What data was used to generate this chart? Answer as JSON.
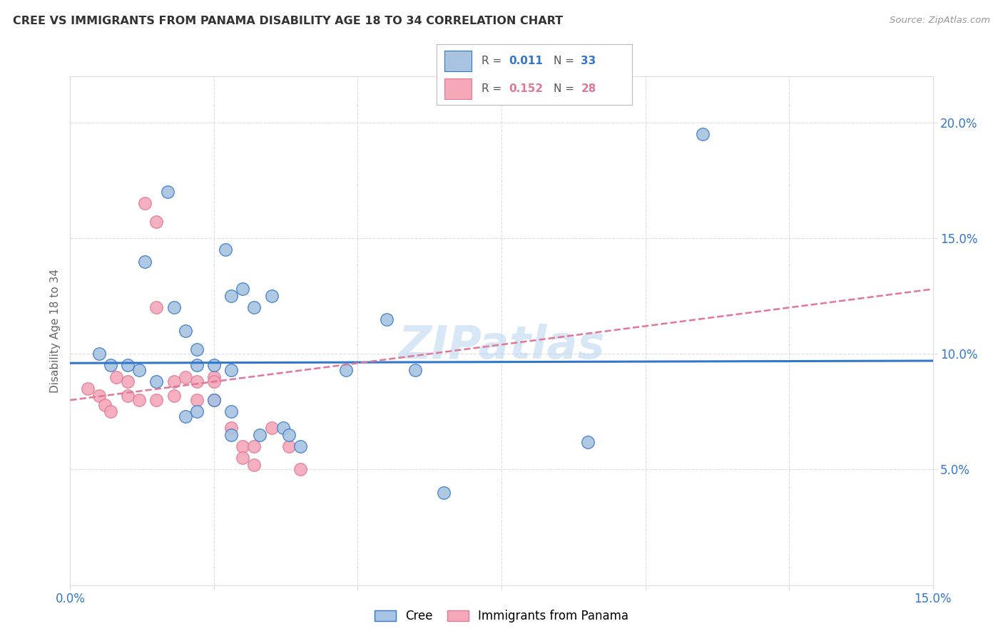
{
  "title": "CREE VS IMMIGRANTS FROM PANAMA DISABILITY AGE 18 TO 34 CORRELATION CHART",
  "source": "Source: ZipAtlas.com",
  "ylabel": "Disability Age 18 to 34",
  "xlim": [
    0.0,
    0.15
  ],
  "ylim": [
    0.0,
    0.22
  ],
  "grid_color": "#dddddd",
  "background_color": "#ffffff",
  "watermark": "ZIPatlas",
  "cree_color": "#a8c4e0",
  "panama_color": "#f4a8b8",
  "cree_line_color": "#3377cc",
  "panama_line_color": "#e07898",
  "title_color": "#333333",
  "source_color": "#999999",
  "tick_color": "#3377cc",
  "ylabel_color": "#666666",
  "cree_scatter": [
    [
      0.005,
      0.1
    ],
    [
      0.007,
      0.095
    ],
    [
      0.01,
      0.095
    ],
    [
      0.012,
      0.093
    ],
    [
      0.013,
      0.14
    ],
    [
      0.015,
      0.088
    ],
    [
      0.017,
      0.17
    ],
    [
      0.018,
      0.12
    ],
    [
      0.02,
      0.11
    ],
    [
      0.02,
      0.073
    ],
    [
      0.022,
      0.102
    ],
    [
      0.022,
      0.095
    ],
    [
      0.022,
      0.075
    ],
    [
      0.025,
      0.095
    ],
    [
      0.025,
      0.08
    ],
    [
      0.027,
      0.145
    ],
    [
      0.028,
      0.125
    ],
    [
      0.028,
      0.093
    ],
    [
      0.028,
      0.075
    ],
    [
      0.028,
      0.065
    ],
    [
      0.03,
      0.128
    ],
    [
      0.032,
      0.12
    ],
    [
      0.033,
      0.065
    ],
    [
      0.035,
      0.125
    ],
    [
      0.037,
      0.068
    ],
    [
      0.038,
      0.065
    ],
    [
      0.04,
      0.06
    ],
    [
      0.048,
      0.093
    ],
    [
      0.055,
      0.115
    ],
    [
      0.06,
      0.093
    ],
    [
      0.065,
      0.04
    ],
    [
      0.09,
      0.062
    ],
    [
      0.11,
      0.195
    ]
  ],
  "panama_scatter": [
    [
      0.003,
      0.085
    ],
    [
      0.005,
      0.082
    ],
    [
      0.006,
      0.078
    ],
    [
      0.007,
      0.075
    ],
    [
      0.008,
      0.09
    ],
    [
      0.01,
      0.088
    ],
    [
      0.01,
      0.082
    ],
    [
      0.012,
      0.08
    ],
    [
      0.013,
      0.165
    ],
    [
      0.015,
      0.157
    ],
    [
      0.015,
      0.12
    ],
    [
      0.015,
      0.08
    ],
    [
      0.018,
      0.088
    ],
    [
      0.018,
      0.082
    ],
    [
      0.02,
      0.09
    ],
    [
      0.022,
      0.088
    ],
    [
      0.022,
      0.08
    ],
    [
      0.025,
      0.09
    ],
    [
      0.025,
      0.088
    ],
    [
      0.025,
      0.08
    ],
    [
      0.028,
      0.068
    ],
    [
      0.03,
      0.06
    ],
    [
      0.03,
      0.055
    ],
    [
      0.032,
      0.06
    ],
    [
      0.032,
      0.052
    ],
    [
      0.035,
      0.068
    ],
    [
      0.038,
      0.06
    ],
    [
      0.04,
      0.05
    ]
  ],
  "cree_trend_x": [
    0.0,
    0.15
  ],
  "cree_trend_y": [
    0.096,
    0.097
  ],
  "panama_trend_x": [
    0.0,
    0.15
  ],
  "panama_trend_y": [
    0.08,
    0.128
  ]
}
